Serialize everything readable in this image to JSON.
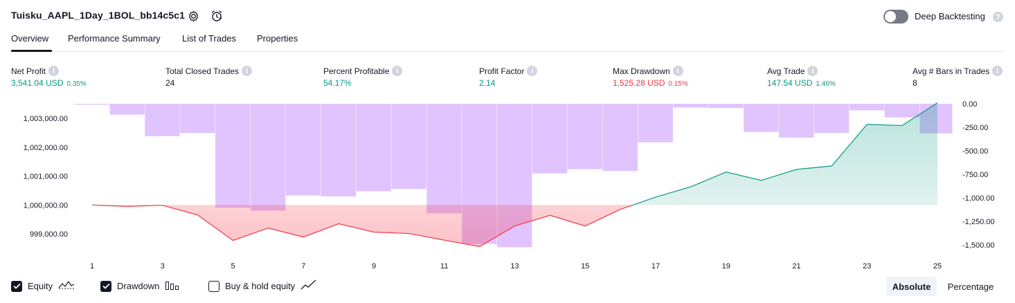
{
  "header": {
    "strategy_title": "Tuisku_AAPL_1Day_1BOL_bb14c5c1",
    "settings_icon": "gear-icon",
    "alert_icon": "alarm-clock-icon",
    "deep_backtesting_label": "Deep Backtesting",
    "deep_backtesting_enabled": false
  },
  "tabs": [
    {
      "label": "Overview",
      "active": true
    },
    {
      "label": "Performance Summary",
      "active": false
    },
    {
      "label": "List of Trades",
      "active": false
    },
    {
      "label": "Properties",
      "active": false
    }
  ],
  "metrics": {
    "net_profit": {
      "label": "Net Profit",
      "value": "3,541.04 USD",
      "pct": "0.35%"
    },
    "total_closed_trades": {
      "label": "Total Closed Trades",
      "value": "24"
    },
    "percent_profitable": {
      "label": "Percent Profitable",
      "value": "54.17%"
    },
    "profit_factor": {
      "label": "Profit Factor",
      "value": "2.14"
    },
    "max_drawdown": {
      "label": "Max Drawdown",
      "value": "1,525.28 USD",
      "pct": "0.15%"
    },
    "avg_trade": {
      "label": "Avg Trade",
      "value": "147.54 USD",
      "pct": "1.46%"
    },
    "avg_bars": {
      "label": "Avg # Bars in Trades",
      "value": "8"
    }
  },
  "colors": {
    "profit": "#089981",
    "loss": "#f23645",
    "drawdown_bar": "#e1c4ff",
    "equity_line_up": "#089981",
    "equity_line_down": "#f23645"
  },
  "chart_data": {
    "type": "line",
    "x": [
      1,
      2,
      3,
      4,
      5,
      6,
      7,
      8,
      9,
      10,
      11,
      12,
      13,
      14,
      15,
      16,
      17,
      18,
      19,
      20,
      21,
      22,
      23,
      24,
      25
    ],
    "x_tick_labels": [
      "1",
      "3",
      "5",
      "7",
      "9",
      "11",
      "13",
      "15",
      "17",
      "19",
      "21",
      "23",
      "25"
    ],
    "left_axis": {
      "ticks": [
        1003000,
        1002000,
        1001000,
        1000000,
        999000
      ],
      "tick_labels": [
        "1,003,000.00",
        "1,002,000.00",
        "1,001,000.00",
        "1,000,000.00",
        "999,000.00"
      ],
      "ylim": [
        998500,
        1003500
      ]
    },
    "right_axis": {
      "ticks": [
        0,
        -250,
        -500,
        -750,
        -1000,
        -1250,
        -1500
      ],
      "tick_labels": [
        "0.00",
        "-250.00",
        "-500.00",
        "-750.00",
        "-1,000.00",
        "-1,250.00",
        "-1,500.00"
      ],
      "ylim": [
        -1525,
        0
      ]
    },
    "baseline": 1000000,
    "series": [
      {
        "name": "Equity",
        "type": "line",
        "axis": "left",
        "values": [
          1000000,
          999950,
          999990,
          999650,
          998770,
          999200,
          998890,
          999350,
          999060,
          999010,
          998780,
          998560,
          999270,
          999640,
          999270,
          999850,
          1000270,
          1000630,
          1001140,
          1000850,
          1001230,
          1001350,
          1002790,
          1002750,
          1003540
        ]
      },
      {
        "name": "Drawdown",
        "type": "bar",
        "axis": "right",
        "values": [
          -10,
          -115,
          -345,
          -310,
          -1105,
          -1135,
          -975,
          -985,
          -930,
          -905,
          -1165,
          -1490,
          -1525,
          -740,
          -695,
          -715,
          -410,
          -40,
          -45,
          -300,
          -360,
          -310,
          -70,
          -145,
          -315
        ]
      }
    ]
  },
  "legend": {
    "equity": {
      "label": "Equity",
      "checked": true,
      "icon": "equity-line-icon"
    },
    "drawdown": {
      "label": "Drawdown",
      "checked": true,
      "icon": "bar-chart-icon"
    },
    "buy_hold": {
      "label": "Buy & hold equity",
      "checked": false,
      "icon": "trend-line-icon"
    }
  },
  "scale_toggle": {
    "absolute_label": "Absolute",
    "percentage_label": "Percentage",
    "selected": "Absolute"
  }
}
